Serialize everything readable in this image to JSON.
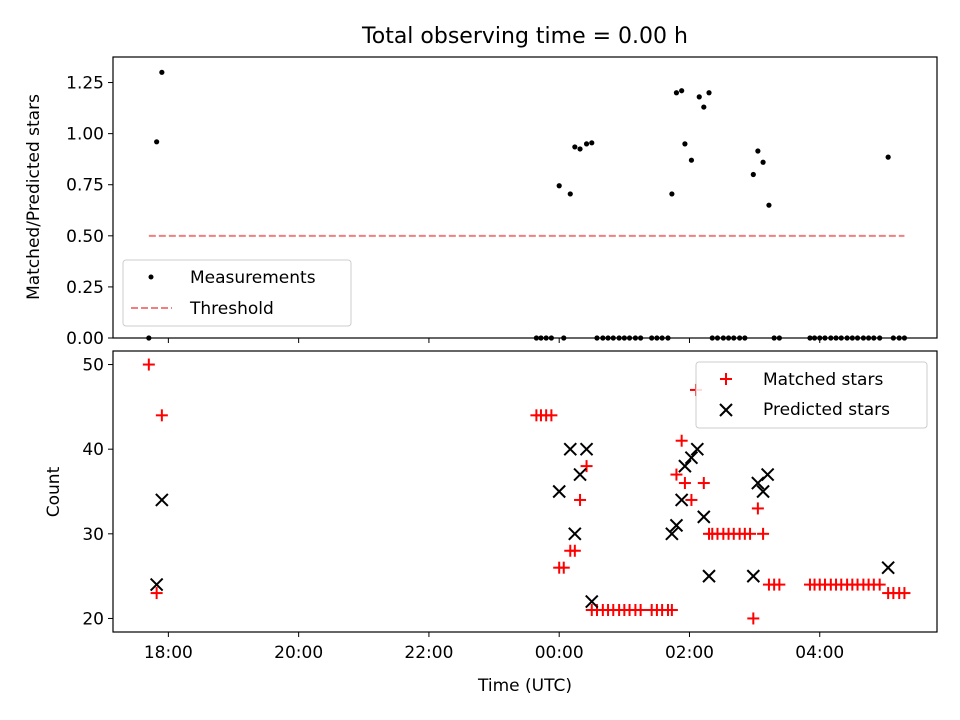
{
  "chart_data": [
    {
      "type": "scatter",
      "title": "Total observing time = 0.00 h",
      "xlabel": "",
      "ylabel": "Matched/Predicted stars",
      "ylim": [
        0,
        1.375
      ],
      "yticks": [
        0.0,
        0.25,
        0.5,
        0.75,
        1.0,
        1.25
      ],
      "ytick_labels": [
        "0.00",
        "0.25",
        "0.50",
        "0.75",
        "1.00",
        "1.25"
      ],
      "xlim": [
        17.15,
        29.8
      ],
      "legend_position": "lower-left",
      "series": [
        {
          "name": "Measurements",
          "marker": "dot",
          "color": "#000000",
          "points": [
            [
              17.7,
              0.0
            ],
            [
              17.82,
              0.96
            ],
            [
              17.9,
              1.3
            ],
            [
              23.65,
              0.0
            ],
            [
              23.72,
              0.0
            ],
            [
              23.8,
              0.0
            ],
            [
              23.88,
              0.0
            ],
            [
              24.0,
              0.745
            ],
            [
              24.07,
              0.0
            ],
            [
              24.17,
              0.705
            ],
            [
              24.24,
              0.935
            ],
            [
              24.32,
              0.925
            ],
            [
              24.42,
              0.95
            ],
            [
              24.5,
              0.955
            ],
            [
              24.58,
              0.0
            ],
            [
              24.67,
              0.0
            ],
            [
              24.75,
              0.0
            ],
            [
              24.83,
              0.0
            ],
            [
              24.92,
              0.0
            ],
            [
              25.0,
              0.0
            ],
            [
              25.08,
              0.0
            ],
            [
              25.17,
              0.0
            ],
            [
              25.25,
              0.0
            ],
            [
              25.42,
              0.0
            ],
            [
              25.5,
              0.0
            ],
            [
              25.58,
              0.0
            ],
            [
              25.67,
              0.0
            ],
            [
              25.73,
              0.705
            ],
            [
              25.8,
              1.2
            ],
            [
              25.88,
              1.21
            ],
            [
              25.93,
              0.95
            ],
            [
              26.03,
              0.87
            ],
            [
              26.15,
              1.18
            ],
            [
              26.22,
              1.13
            ],
            [
              26.3,
              1.2
            ],
            [
              26.35,
              0.0
            ],
            [
              26.43,
              0.0
            ],
            [
              26.52,
              0.0
            ],
            [
              26.6,
              0.0
            ],
            [
              26.68,
              0.0
            ],
            [
              26.77,
              0.0
            ],
            [
              26.85,
              0.0
            ],
            [
              26.98,
              0.8
            ],
            [
              27.05,
              0.915
            ],
            [
              27.13,
              0.86
            ],
            [
              27.22,
              0.65
            ],
            [
              27.3,
              0.0
            ],
            [
              27.38,
              0.0
            ],
            [
              27.85,
              0.0
            ],
            [
              27.92,
              0.0
            ],
            [
              28.0,
              0.0
            ],
            [
              28.08,
              0.0
            ],
            [
              28.17,
              0.0
            ],
            [
              28.25,
              0.0
            ],
            [
              28.33,
              0.0
            ],
            [
              28.42,
              0.0
            ],
            [
              28.5,
              0.0
            ],
            [
              28.58,
              0.0
            ],
            [
              28.67,
              0.0
            ],
            [
              28.75,
              0.0
            ],
            [
              28.83,
              0.0
            ],
            [
              28.92,
              0.0
            ],
            [
              29.05,
              0.885
            ],
            [
              29.13,
              0.0
            ],
            [
              29.22,
              0.0
            ],
            [
              29.3,
              0.0
            ]
          ]
        },
        {
          "name": "Threshold",
          "marker": "dashed-line",
          "color": "#f08080",
          "points": [
            [
              17.7,
              0.5
            ],
            [
              29.3,
              0.5
            ]
          ]
        }
      ]
    },
    {
      "type": "scatter",
      "title": "",
      "xlabel": "Time (UTC)",
      "ylabel": "Count",
      "ylim": [
        18.4,
        51.6
      ],
      "yticks": [
        20,
        30,
        40,
        50
      ],
      "ytick_labels": [
        "20",
        "30",
        "40",
        "50"
      ],
      "xlim": [
        17.15,
        29.8
      ],
      "xticks": [
        18,
        20,
        22,
        24,
        26,
        28
      ],
      "xtick_labels": [
        "18:00",
        "20:00",
        "22:00",
        "00:00",
        "02:00",
        "04:00"
      ],
      "legend_position": "upper-right",
      "series": [
        {
          "name": "Matched stars",
          "marker": "plus",
          "color": "#ff0000",
          "points": [
            [
              17.7,
              50
            ],
            [
              17.82,
              23
            ],
            [
              17.9,
              44
            ],
            [
              23.65,
              44
            ],
            [
              23.72,
              44
            ],
            [
              23.8,
              44
            ],
            [
              23.88,
              44
            ],
            [
              24.0,
              26
            ],
            [
              24.07,
              26
            ],
            [
              24.17,
              28
            ],
            [
              24.24,
              28
            ],
            [
              24.32,
              34
            ],
            [
              24.42,
              38
            ],
            [
              24.5,
              21
            ],
            [
              24.58,
              21
            ],
            [
              24.67,
              21
            ],
            [
              24.75,
              21
            ],
            [
              24.83,
              21
            ],
            [
              24.92,
              21
            ],
            [
              25.0,
              21
            ],
            [
              25.08,
              21
            ],
            [
              25.17,
              21
            ],
            [
              25.25,
              21
            ],
            [
              25.42,
              21
            ],
            [
              25.5,
              21
            ],
            [
              25.58,
              21
            ],
            [
              25.67,
              21
            ],
            [
              25.73,
              21
            ],
            [
              25.8,
              37
            ],
            [
              25.88,
              41
            ],
            [
              25.93,
              36
            ],
            [
              26.03,
              34
            ],
            [
              26.1,
              47
            ],
            [
              26.22,
              36
            ],
            [
              26.3,
              30
            ],
            [
              26.35,
              30
            ],
            [
              26.43,
              30
            ],
            [
              26.52,
              30
            ],
            [
              26.6,
              30
            ],
            [
              26.68,
              30
            ],
            [
              26.77,
              30
            ],
            [
              26.85,
              30
            ],
            [
              26.93,
              30
            ],
            [
              26.98,
              20
            ],
            [
              27.05,
              33
            ],
            [
              27.13,
              30
            ],
            [
              27.22,
              24
            ],
            [
              27.3,
              24
            ],
            [
              27.38,
              24
            ],
            [
              27.85,
              24
            ],
            [
              27.92,
              24
            ],
            [
              28.0,
              24
            ],
            [
              28.08,
              24
            ],
            [
              28.17,
              24
            ],
            [
              28.25,
              24
            ],
            [
              28.33,
              24
            ],
            [
              28.42,
              24
            ],
            [
              28.5,
              24
            ],
            [
              28.58,
              24
            ],
            [
              28.67,
              24
            ],
            [
              28.75,
              24
            ],
            [
              28.83,
              24
            ],
            [
              28.92,
              24
            ],
            [
              29.05,
              23
            ],
            [
              29.13,
              23
            ],
            [
              29.22,
              23
            ],
            [
              29.3,
              23
            ]
          ]
        },
        {
          "name": "Predicted stars",
          "marker": "x",
          "color": "#000000",
          "points": [
            [
              17.82,
              24
            ],
            [
              17.9,
              34
            ],
            [
              24.0,
              35
            ],
            [
              24.17,
              40
            ],
            [
              24.24,
              30
            ],
            [
              24.32,
              37
            ],
            [
              24.42,
              40
            ],
            [
              24.5,
              22
            ],
            [
              25.73,
              30
            ],
            [
              25.8,
              31
            ],
            [
              25.88,
              34
            ],
            [
              25.93,
              38
            ],
            [
              26.03,
              39
            ],
            [
              26.12,
              40
            ],
            [
              26.22,
              32
            ],
            [
              26.3,
              25
            ],
            [
              26.98,
              25
            ],
            [
              27.05,
              36
            ],
            [
              27.13,
              35
            ],
            [
              27.2,
              37
            ],
            [
              29.05,
              26
            ]
          ]
        }
      ]
    }
  ]
}
